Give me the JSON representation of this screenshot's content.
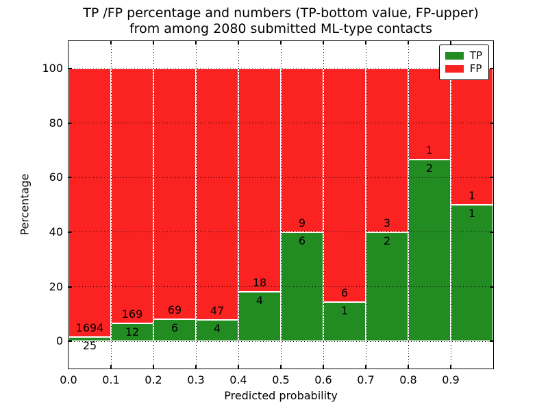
{
  "title": {
    "line1": "TP /FP percentage and numbers (TP-bottom value, FP-upper)",
    "line2": "from among 2080 submitted ML-type contacts"
  },
  "axes": {
    "xlabel": "Predicted probability",
    "ylabel": "Percentage",
    "x_tick_labels": [
      "0.0",
      "0.1",
      "0.2",
      "0.3",
      "0.4",
      "0.5",
      "0.6",
      "0.7",
      "0.8",
      "0.9"
    ],
    "y_tick_labels": [
      "0",
      "20",
      "40",
      "60",
      "80",
      "100"
    ],
    "y_tick_values": [
      0,
      20,
      40,
      60,
      80,
      100
    ],
    "xlim": [
      0.0,
      1.0
    ],
    "ylim": [
      -10,
      110
    ]
  },
  "legend": {
    "items": [
      {
        "label": "TP",
        "color": "#228b22"
      },
      {
        "label": "FP",
        "color": "#fb2222"
      }
    ]
  },
  "colors": {
    "tp": "#228b22",
    "fp": "#fb2222",
    "grid": "#000000",
    "background": "#ffffff"
  },
  "chart_data": {
    "type": "bar",
    "stacked": true,
    "title": "TP /FP percentage and numbers (TP-bottom value, FP-upper) from among 2080 submitted ML-type contacts",
    "xlabel": "Predicted probability",
    "ylabel": "Percentage",
    "total_contacts": 2080,
    "grid": "dotted",
    "legend_position": "upper right",
    "ylim": [
      -10,
      110
    ],
    "bin_edges": [
      0.0,
      0.1,
      0.2,
      0.3,
      0.4,
      0.5,
      0.6,
      0.7,
      0.8,
      0.9,
      1.0
    ],
    "bins": [
      {
        "range": [
          0.0,
          0.1
        ],
        "tp": 25,
        "fp": 1694,
        "tp_pct": 1.45,
        "fp_pct": 98.55
      },
      {
        "range": [
          0.1,
          0.2
        ],
        "tp": 12,
        "fp": 169,
        "tp_pct": 6.63,
        "fp_pct": 93.37
      },
      {
        "range": [
          0.2,
          0.3
        ],
        "tp": 6,
        "fp": 69,
        "tp_pct": 8.0,
        "fp_pct": 92.0
      },
      {
        "range": [
          0.3,
          0.4
        ],
        "tp": 4,
        "fp": 47,
        "tp_pct": 7.84,
        "fp_pct": 92.16
      },
      {
        "range": [
          0.4,
          0.5
        ],
        "tp": 4,
        "fp": 18,
        "tp_pct": 18.18,
        "fp_pct": 81.82
      },
      {
        "range": [
          0.5,
          0.6
        ],
        "tp": 6,
        "fp": 9,
        "tp_pct": 40.0,
        "fp_pct": 60.0
      },
      {
        "range": [
          0.6,
          0.7
        ],
        "tp": 1,
        "fp": 6,
        "tp_pct": 14.29,
        "fp_pct": 85.71
      },
      {
        "range": [
          0.7,
          0.8
        ],
        "tp": 2,
        "fp": 3,
        "tp_pct": 40.0,
        "fp_pct": 60.0
      },
      {
        "range": [
          0.8,
          0.9
        ],
        "tp": 2,
        "fp": 1,
        "tp_pct": 66.67,
        "fp_pct": 33.33
      },
      {
        "range": [
          0.9,
          1.0
        ],
        "tp": 1,
        "fp": 1,
        "tp_pct": 50.0,
        "fp_pct": 50.0
      }
    ],
    "series": [
      {
        "name": "TP",
        "color": "#228b22",
        "counts": [
          25,
          12,
          6,
          4,
          4,
          6,
          1,
          2,
          2,
          1
        ]
      },
      {
        "name": "FP",
        "color": "#fb2222",
        "counts": [
          1694,
          169,
          69,
          47,
          18,
          9,
          6,
          3,
          1,
          1
        ]
      }
    ]
  }
}
